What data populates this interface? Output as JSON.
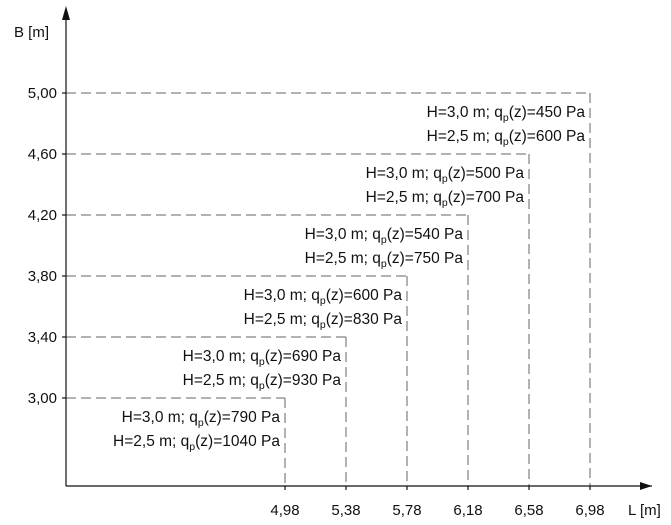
{
  "chart_data": {
    "type": "diagram",
    "xlabel": "L [m]",
    "ylabel": "B [m]",
    "x_ticks": [
      "4,98",
      "5,38",
      "5,78",
      "6,18",
      "6,58",
      "6,98"
    ],
    "y_ticks": [
      "3,00",
      "3,40",
      "3,80",
      "4,20",
      "4,60",
      "5,00"
    ],
    "zones": [
      {
        "L": 4.98,
        "B": 3.0,
        "L_label": "4,98",
        "B_label": "3,00",
        "line1": {
          "pre": "H=3,0 m; q",
          "sub": "p",
          "post": "(z)=790 Pa"
        },
        "line2": {
          "pre": "H=2,5 m; q",
          "sub": "p",
          "post": "(z)=1040 Pa"
        }
      },
      {
        "L": 5.38,
        "B": 3.4,
        "L_label": "5,38",
        "B_label": "3,40",
        "line1": {
          "pre": "H=3,0 m; q",
          "sub": "p",
          "post": "(z)=690 Pa"
        },
        "line2": {
          "pre": "H=2,5 m; q",
          "sub": "p",
          "post": "(z)=930 Pa"
        }
      },
      {
        "L": 5.78,
        "B": 3.8,
        "L_label": "5,78",
        "B_label": "3,80",
        "line1": {
          "pre": "H=3,0 m; q",
          "sub": "p",
          "post": "(z)=600 Pa"
        },
        "line2": {
          "pre": "H=2,5 m; q",
          "sub": "p",
          "post": "(z)=830 Pa"
        }
      },
      {
        "L": 6.18,
        "B": 4.2,
        "L_label": "6,18",
        "B_label": "4,20",
        "line1": {
          "pre": "H=3,0 m; q",
          "sub": "p",
          "post": "(z)=540 Pa"
        },
        "line2": {
          "pre": "H=2,5 m; q",
          "sub": "p",
          "post": "(z)=750 Pa"
        }
      },
      {
        "L": 6.58,
        "B": 4.6,
        "L_label": "6,58",
        "B_label": "4,60",
        "line1": {
          "pre": "H=3,0 m; q",
          "sub": "p",
          "post": "(z)=500 Pa"
        },
        "line2": {
          "pre": "H=2,5 m; q",
          "sub": "p",
          "post": "(z)=700 Pa"
        }
      },
      {
        "L": 6.98,
        "B": 5.0,
        "L_label": "6,98",
        "B_label": "5,00",
        "line1": {
          "pre": "H=3,0 m; q",
          "sub": "p",
          "post": "(z)=450 Pa"
        },
        "line2": {
          "pre": "H=2,5 m; q",
          "sub": "p",
          "post": "(z)=600 Pa"
        }
      }
    ],
    "colors": {
      "line": "#111111",
      "dash": "#666666"
    }
  }
}
